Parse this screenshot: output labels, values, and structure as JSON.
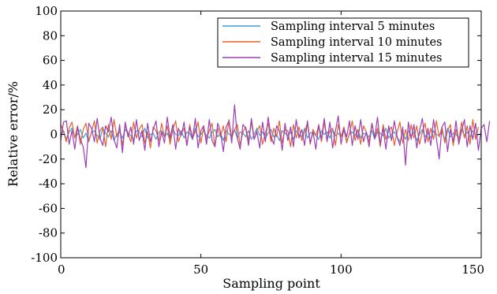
{
  "chart_data": {
    "type": "line",
    "title": "",
    "xlabel": "Sampling point",
    "ylabel": "Relative error/%",
    "xlim": [
      0,
      150
    ],
    "ylim": [
      -100,
      100
    ],
    "xticks": [
      0,
      50,
      100,
      150
    ],
    "yticks": [
      100,
      80,
      60,
      40,
      20,
      0,
      -20,
      -40,
      -60,
      -80,
      -100
    ],
    "grid": false,
    "legend_position": "top-right",
    "series": [
      {
        "name": "Sampling interval 5 minutes",
        "color": "#3d9fd9",
        "values": [
          -1,
          3,
          -4,
          2,
          5,
          -2,
          0,
          4,
          -3,
          1,
          -6,
          2,
          3,
          -1,
          -4,
          5,
          1,
          -2,
          3,
          -5,
          0,
          2,
          -3,
          4,
          1,
          -1,
          -4,
          3,
          2,
          -2,
          5,
          -3,
          0,
          1,
          -4,
          2,
          3,
          -2,
          1,
          -5,
          4,
          0,
          -1,
          3,
          -3,
          2,
          1,
          -4,
          5,
          -2,
          0,
          3,
          -1,
          -3,
          2,
          4,
          -2,
          1,
          -5,
          3,
          0,
          -1,
          4,
          -3,
          2,
          1,
          -2,
          3,
          -4,
          0,
          5,
          -1,
          2,
          -3,
          1,
          4,
          -2,
          0,
          -5,
          3,
          1,
          -1,
          2,
          -4,
          3,
          0,
          -2,
          5,
          -3,
          1,
          2,
          -1,
          -4,
          3,
          0,
          2,
          -3,
          4,
          -1,
          1,
          -2,
          3,
          -5,
          0,
          2,
          -1,
          4,
          -3,
          1,
          0,
          -2,
          3,
          -4,
          2,
          1,
          -1,
          5,
          -3,
          0,
          2,
          -2,
          -6,
          1,
          -4,
          3,
          -1,
          2,
          -5,
          0,
          4,
          -2,
          1,
          -3,
          3,
          0,
          -1,
          2,
          -4,
          5,
          -2,
          1,
          0,
          -3,
          4,
          -1,
          2,
          -2,
          3,
          0,
          -1
        ]
      },
      {
        "name": "Sampling interval 10 minutes",
        "color": "#e8622a",
        "values": [
          8,
          2,
          -6,
          5,
          10,
          -3,
          7,
          -8,
          4,
          9,
          -5,
          2,
          11,
          -7,
          3,
          6,
          -10,
          8,
          -4,
          12,
          -2,
          5,
          -9,
          7,
          1,
          -6,
          10,
          -3,
          4,
          8,
          -7,
          2,
          -11,
          6,
          3,
          -5,
          9,
          -2,
          7,
          -8,
          4,
          11,
          -6,
          1,
          5,
          -9,
          8,
          -3,
          2,
          10,
          -7,
          6,
          -4,
          3,
          9,
          -10,
          5,
          -2,
          7,
          -6,
          12,
          -3,
          4,
          8,
          -9,
          2,
          6,
          -5,
          10,
          -4,
          3,
          7,
          -8,
          1,
          9,
          -6,
          5,
          -2,
          11,
          -7,
          4,
          3,
          -10,
          8,
          -3,
          6,
          -5,
          2,
          9,
          -8,
          4,
          -1,
          7,
          -6,
          10,
          -4,
          3,
          5,
          -9,
          8,
          -2,
          6,
          -7,
          1,
          11,
          -5,
          4,
          -8,
          7,
          2,
          -6,
          9,
          -3,
          5,
          -10,
          8,
          -4,
          3,
          6,
          -9,
          2,
          10,
          -7,
          4,
          -5,
          8,
          -3,
          7,
          -8,
          2,
          9,
          -6,
          5,
          -4,
          11,
          -2,
          6,
          -7,
          3,
          8,
          -9,
          4,
          -5,
          10,
          -3,
          7,
          -8,
          12,
          -4,
          6
        ]
      },
      {
        "name": "Sampling interval 15 minutes",
        "color": "#9b3fb5",
        "values": [
          -5,
          10,
          11,
          -8,
          3,
          -12,
          6,
          -4,
          -10,
          -27,
          9,
          5,
          -6,
          13,
          -3,
          -9,
          7,
          2,
          14,
          -4,
          -11,
          8,
          -15,
          10,
          -2,
          6,
          -8,
          12,
          -5,
          3,
          -13,
          9,
          -6,
          4,
          11,
          -10,
          2,
          -7,
          14,
          -3,
          8,
          -12,
          5,
          -1,
          10,
          -9,
          6,
          -4,
          13,
          -11,
          3,
          7,
          -8,
          12,
          -5,
          -10,
          9,
          2,
          -14,
          6,
          11,
          -7,
          24,
          -3,
          -12,
          8,
          5,
          -9,
          13,
          -4,
          2,
          -11,
          10,
          -6,
          14,
          -2,
          -8,
          7,
          3,
          -13,
          9,
          -5,
          6,
          -10,
          12,
          -3,
          4,
          -9,
          11,
          -7,
          2,
          -12,
          8,
          -4,
          13,
          -6,
          10,
          -11,
          3,
          15,
          -8,
          5,
          -2,
          11,
          -9,
          7,
          -4,
          12,
          -6,
          2,
          -10,
          9,
          -3,
          14,
          -8,
          5,
          -12,
          7,
          -5,
          11,
          -2,
          -9,
          6,
          -25,
          10,
          -4,
          8,
          -11,
          3,
          13,
          -7,
          5,
          -9,
          12,
          -3,
          -20,
          6,
          10,
          -14,
          4,
          -6,
          11,
          -8,
          3,
          12,
          -10,
          7,
          -4,
          9,
          -13,
          5,
          8,
          -6,
          11
        ]
      }
    ]
  }
}
